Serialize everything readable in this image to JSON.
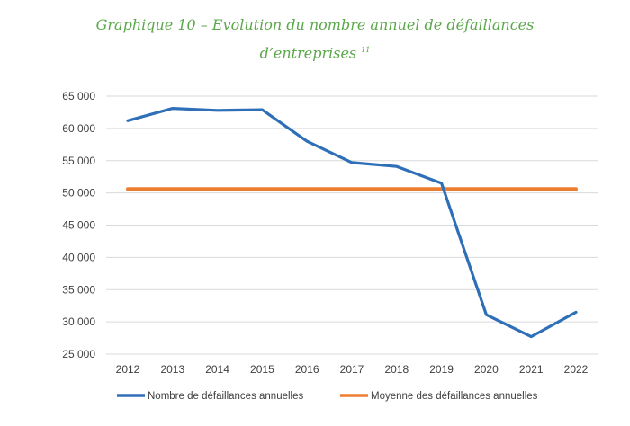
{
  "title_line1": "Graphique 10 – Evolution du nombre annuel de défaillances",
  "title_line2": "d’entreprises",
  "title_note": "11",
  "chart_data": {
    "type": "line",
    "x": [
      "2012",
      "2013",
      "2014",
      "2015",
      "2016",
      "2017",
      "2018",
      "2019",
      "2020",
      "2021",
      "2022"
    ],
    "series": [
      {
        "name": "Nombre de défaillances annuelles",
        "color": "#2e6fb7",
        "values": [
          61200,
          63100,
          62800,
          62900,
          58000,
          54700,
          54100,
          51500,
          31100,
          27700,
          31500
        ]
      },
      {
        "name": "Moyenne des défaillances annuelles",
        "color": "#ed7d31",
        "values": [
          50600,
          50600,
          50600,
          50600,
          50600,
          50600,
          50600,
          50600,
          50600,
          50600,
          50600
        ]
      }
    ],
    "ylim": [
      25000,
      65000
    ],
    "yticks": [
      25000,
      30000,
      35000,
      40000,
      45000,
      50000,
      55000,
      60000,
      65000
    ],
    "ytick_labels": [
      "25 000",
      "30 000",
      "35 000",
      "40 000",
      "45 000",
      "50 000",
      "55 000",
      "60 000",
      "65 000"
    ],
    "grid": true,
    "legend": "bottom"
  }
}
